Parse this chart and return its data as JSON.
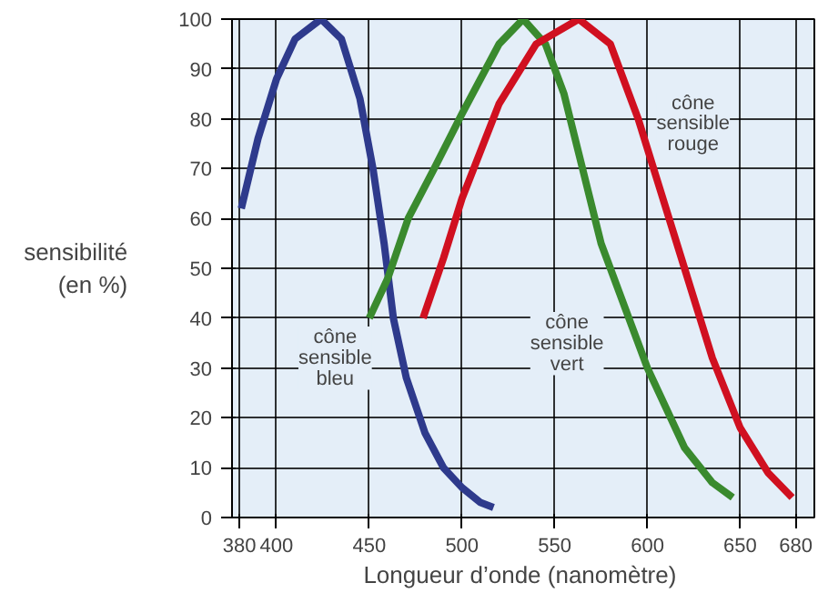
{
  "chart_data": {
    "type": "line",
    "xlabel": "Longueur d’onde  (nanomètre)",
    "ylabel": "sensibilité\n(en %)",
    "xlim": [
      376,
      690
    ],
    "xticks": [
      380,
      400,
      450,
      500,
      550,
      600,
      650,
      680
    ],
    "ylim": [
      0,
      100
    ],
    "yticks": [
      0,
      10,
      20,
      30,
      40,
      50,
      60,
      70,
      80,
      90,
      100
    ],
    "grid": true,
    "marker": "none",
    "line_style": "solid",
    "series": [
      {
        "color": "#2e3a8c",
        "x": [
          381,
          390,
          400,
          410,
          424,
          435,
          445,
          452,
          458,
          463,
          470,
          480,
          490,
          500,
          510,
          517
        ],
        "values": [
          62,
          76,
          88,
          96,
          100,
          96,
          84,
          70,
          55,
          40,
          28,
          17,
          10,
          6,
          3,
          2
        ]
      },
      {
        "color": "#3a8a2e",
        "x": [
          450,
          460,
          471,
          485,
          500,
          520,
          533,
          545,
          555,
          565,
          575,
          590,
          600,
          620,
          635,
          646
        ],
        "values": [
          40,
          48,
          60,
          70,
          81,
          95,
          100,
          95,
          85,
          70,
          55,
          40,
          30,
          14,
          7,
          4
        ]
      },
      {
        "color": "#d01020",
        "x": [
          479,
          490,
          500,
          520,
          540,
          563,
          580,
          595,
          605,
          620,
          635,
          650,
          665,
          678
        ],
        "values": [
          40,
          52,
          64,
          83,
          95,
          100,
          95,
          80,
          68,
          50,
          32,
          18,
          9,
          4
        ]
      }
    ],
    "annotations": [
      {
        "text": "cône\nsensible\nbleu",
        "x": 463,
        "y": 40
      },
      {
        "text": "cône\nsensible\nvert",
        "x": 590,
        "y": 40
      },
      {
        "text": "cône\nsensible\nrouge",
        "x": 605,
        "y": 68
      }
    ]
  }
}
